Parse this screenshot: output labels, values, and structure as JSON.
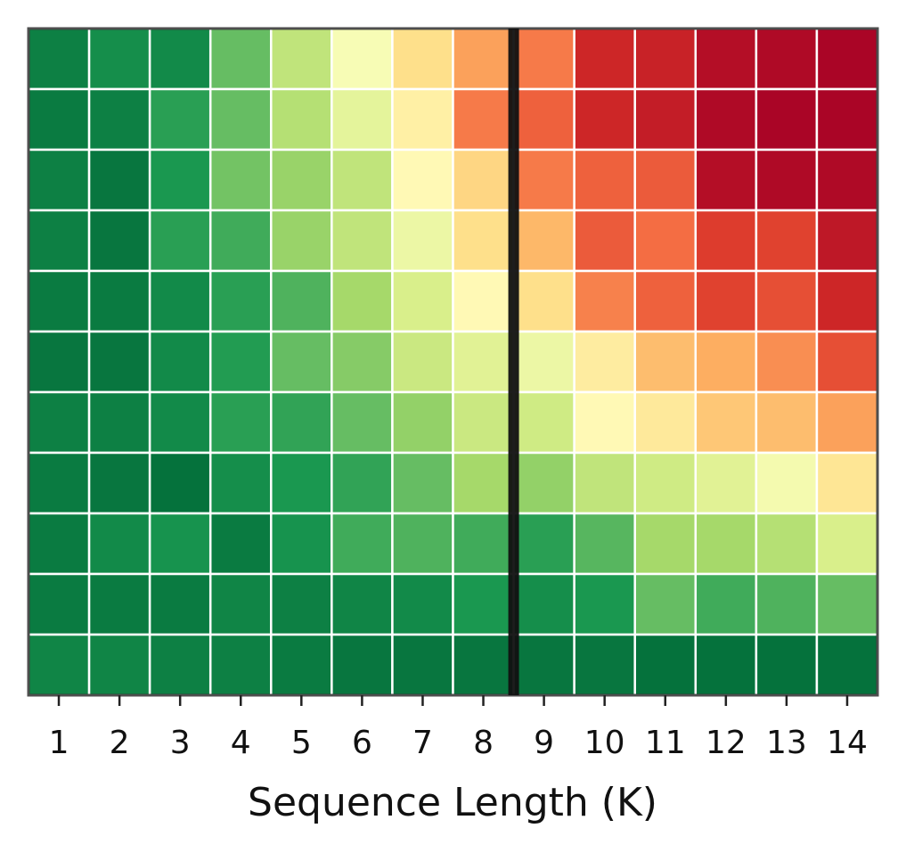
{
  "chart_data": {
    "type": "heatmap",
    "xlabel": "Sequence Length (K)",
    "x": [
      1,
      2,
      3,
      4,
      5,
      6,
      7,
      8,
      9,
      10,
      11,
      12,
      13,
      14
    ],
    "xlim": [
      0.5,
      14.5
    ],
    "xticks": [
      1,
      2,
      3,
      4,
      5,
      6,
      7,
      8,
      9,
      10,
      11,
      12,
      13,
      14
    ],
    "zlim": [
      0,
      1
    ],
    "colormap": [
      "#006837",
      "#1a9850",
      "#66bd63",
      "#a6d96a",
      "#d9ef8b",
      "#ffffbf",
      "#fee08b",
      "#fdae61",
      "#f46d43",
      "#d73027",
      "#a50026"
    ],
    "vline": 8.5,
    "z": [
      [
        0.05,
        0.08,
        0.07,
        0.2,
        0.35,
        0.48,
        0.6,
        0.72,
        0.78,
        0.92,
        0.93,
        0.97,
        0.98,
        0.99
      ],
      [
        0.04,
        0.05,
        0.12,
        0.2,
        0.33,
        0.43,
        0.55,
        0.78,
        0.82,
        0.92,
        0.94,
        0.98,
        0.99,
        0.99
      ],
      [
        0.05,
        0.03,
        0.1,
        0.22,
        0.28,
        0.35,
        0.52,
        0.62,
        0.78,
        0.82,
        0.83,
        0.97,
        0.98,
        0.98
      ],
      [
        0.05,
        0.03,
        0.12,
        0.15,
        0.28,
        0.35,
        0.45,
        0.6,
        0.68,
        0.83,
        0.8,
        0.88,
        0.87,
        0.95
      ],
      [
        0.04,
        0.04,
        0.07,
        0.12,
        0.17,
        0.3,
        0.4,
        0.52,
        0.6,
        0.77,
        0.82,
        0.87,
        0.85,
        0.92
      ],
      [
        0.03,
        0.03,
        0.07,
        0.11,
        0.2,
        0.25,
        0.37,
        0.42,
        0.45,
        0.56,
        0.67,
        0.7,
        0.75,
        0.85
      ],
      [
        0.05,
        0.05,
        0.07,
        0.12,
        0.13,
        0.2,
        0.27,
        0.37,
        0.38,
        0.52,
        0.57,
        0.65,
        0.67,
        0.72
      ],
      [
        0.04,
        0.03,
        0.02,
        0.08,
        0.1,
        0.13,
        0.2,
        0.3,
        0.27,
        0.35,
        0.38,
        0.42,
        0.47,
        0.58
      ],
      [
        0.04,
        0.07,
        0.09,
        0.04,
        0.09,
        0.15,
        0.17,
        0.15,
        0.12,
        0.18,
        0.3,
        0.3,
        0.33,
        0.4
      ],
      [
        0.04,
        0.04,
        0.04,
        0.06,
        0.05,
        0.06,
        0.07,
        0.1,
        0.08,
        0.1,
        0.2,
        0.15,
        0.17,
        0.2
      ],
      [
        0.06,
        0.06,
        0.05,
        0.05,
        0.04,
        0.03,
        0.03,
        0.03,
        0.03,
        0.03,
        0.02,
        0.02,
        0.02,
        0.02
      ]
    ]
  }
}
